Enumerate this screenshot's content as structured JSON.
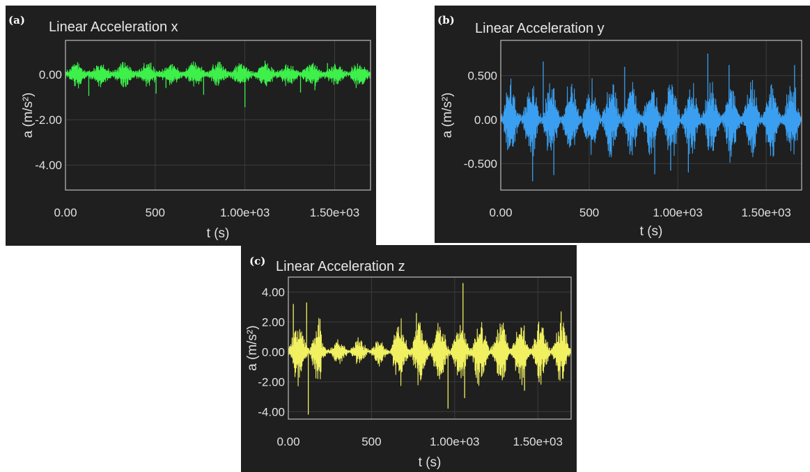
{
  "chart_data": [
    {
      "id": "a",
      "type": "line",
      "panel_tag": "(a)",
      "title": "Linear Acceleration x",
      "xlabel": "t (s)",
      "ylabel": "a (m/s²)",
      "xlim": [
        0,
        1700
      ],
      "ylim": [
        -5.1,
        1.5
      ],
      "x_ticks": [
        0,
        500,
        1000,
        1500
      ],
      "x_tick_labels": [
        "0.00",
        "500",
        "1.00e+03",
        "1.50e+03"
      ],
      "y_ticks": [
        0,
        -2,
        -4
      ],
      "y_tick_labels": [
        "0.00",
        "-2.00",
        "-4.00"
      ],
      "grid": true,
      "series": [
        {
          "color": "#3df04a",
          "signal": {
            "duration": 1700,
            "bursts": 13,
            "base_amplitude": 0.15,
            "burst_amplitude": 0.42,
            "noise_floor": 0.05,
            "spikes": [
              [
                130,
                -0.95
              ],
              [
                505,
                -0.85
              ],
              [
                560,
                -0.6
              ],
              [
                770,
                -0.9
              ],
              [
                1000,
                -1.45
              ],
              [
                1310,
                -0.8
              ],
              [
                1390,
                -0.7
              ],
              [
                1620,
                -0.6
              ],
              [
                320,
                0.55
              ],
              [
                1460,
                0.5
              ]
            ]
          }
        }
      ]
    },
    {
      "id": "b",
      "type": "line",
      "panel_tag": "(b)",
      "title": "Linear Acceleration y",
      "xlabel": "t (s)",
      "ylabel": "a (m/s²)",
      "xlim": [
        0,
        1700
      ],
      "ylim": [
        -0.8,
        0.9
      ],
      "x_ticks": [
        0,
        500,
        1000,
        1500
      ],
      "x_tick_labels": [
        "0.00",
        "500",
        "1.00e+03",
        "1.50e+03"
      ],
      "y_ticks": [
        0.5,
        0,
        -0.5
      ],
      "y_tick_labels": [
        "0.500",
        "0.00",
        "-0.500"
      ],
      "grid": true,
      "series": [
        {
          "color": "#3a9ff0",
          "signal": {
            "duration": 1700,
            "bursts": 15,
            "base_amplitude": 0.05,
            "burst_amplitude": 0.42,
            "noise_floor": 0.02,
            "spikes": [
              [
                240,
                0.66
              ],
              [
                300,
                -0.63
              ],
              [
                700,
                0.6
              ],
              [
                1170,
                0.75
              ],
              [
                1290,
                0.62
              ],
              [
                1660,
                0.62
              ],
              [
                180,
                -0.7
              ],
              [
                870,
                -0.62
              ],
              [
                960,
                -0.58
              ],
              [
                1060,
                -0.6
              ]
            ]
          }
        }
      ]
    },
    {
      "id": "c",
      "type": "line",
      "panel_tag": "(c)",
      "title": "Linear Acceleration z",
      "xlabel": "t (s)",
      "ylabel": "a (m/s²)",
      "xlim": [
        0,
        1700
      ],
      "ylim": [
        -4.5,
        5.0
      ],
      "x_ticks": [
        0,
        500,
        1000,
        1500
      ],
      "x_tick_labels": [
        "0.00",
        "500",
        "1.00e+03",
        "1.50e+03"
      ],
      "y_ticks": [
        4,
        2,
        0,
        -2,
        -4
      ],
      "y_tick_labels": [
        "4.00",
        "2.00",
        "0.00",
        "-2.00",
        "-4.00"
      ],
      "grid": true,
      "series": [
        {
          "color": "#f0f060",
          "signal": {
            "duration": 1700,
            "bursts": 14,
            "base_amplitude": 0.25,
            "burst_amplitude": 2.1,
            "noise_floor": 0.08,
            "damped_region": [
              200,
              620,
              0.4
            ],
            "spikes": [
              [
                110,
                3.3
              ],
              [
                120,
                -4.2
              ],
              [
                1050,
                4.6
              ],
              [
                1060,
                -3.1
              ],
              [
                960,
                -3.8
              ],
              [
                30,
                3.2
              ],
              [
                1640,
                2.7
              ],
              [
                1420,
                -2.6
              ],
              [
                770,
                2.6
              ]
            ]
          }
        }
      ]
    }
  ]
}
